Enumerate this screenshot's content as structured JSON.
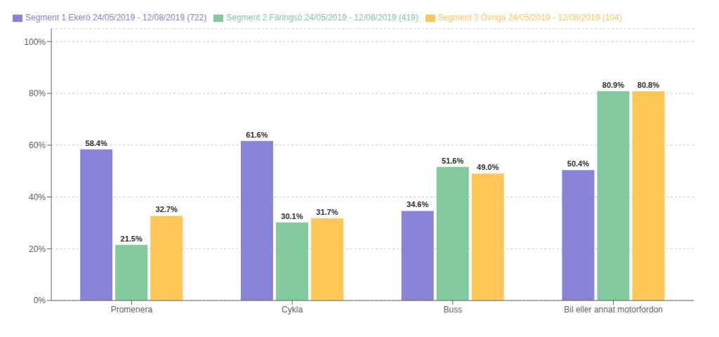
{
  "chart_data": {
    "type": "bar",
    "categories": [
      "Promenera",
      "Cykla",
      "Buss",
      "Bil eller annat motorfordon"
    ],
    "series": [
      {
        "name": "Segment 1 Ekerö 24/05/2019 - 12/08/2019 (722)",
        "values": [
          58.4,
          61.6,
          34.6,
          50.4
        ],
        "value_labels": [
          "58.4%",
          "61.6%",
          "34.6%",
          "50.4%"
        ]
      },
      {
        "name": "Segment 2 Färingsö 24/05/2019 - 12/08/2019 (419)",
        "values": [
          21.5,
          30.1,
          51.6,
          80.9
        ],
        "value_labels": [
          "21.5%",
          "30.1%",
          "51.6%",
          "80.9%"
        ]
      },
      {
        "name": "Segment 3 Övriga 24/05/2019 - 12/08/2019 (104)",
        "values": [
          32.7,
          31.7,
          49.0,
          80.8
        ],
        "value_labels": [
          "32.7%",
          "31.7%",
          "49.0%",
          "80.8%"
        ]
      }
    ],
    "ylim": [
      0,
      105
    ],
    "yticks": [
      {
        "value": 0,
        "label": "0%"
      },
      {
        "value": 20,
        "label": "20%"
      },
      {
        "value": 40,
        "label": "40%"
      },
      {
        "value": 60,
        "label": "60%"
      },
      {
        "value": 80,
        "label": "80%"
      },
      {
        "value": 100,
        "label": "100%"
      }
    ],
    "grid": true,
    "legend": "upper left",
    "data_labels": true
  }
}
